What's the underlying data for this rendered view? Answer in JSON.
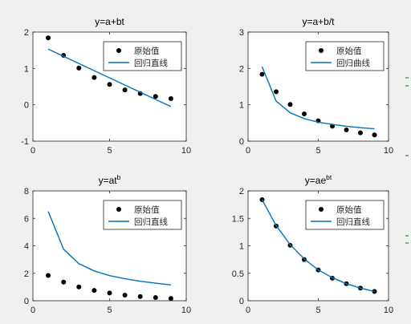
{
  "window": {
    "edge_marks_color": "#3aa24a"
  },
  "chart_data": [
    {
      "type": "scatter",
      "title_main": "y=a+bt",
      "title_sup": "",
      "xlim": [
        0,
        10
      ],
      "ylim": [
        -1,
        2
      ],
      "xticks": [
        0,
        5,
        10
      ],
      "yticks": [
        -1,
        0,
        1,
        2
      ],
      "legend_placement": "top-right",
      "series": [
        {
          "name": "原始值",
          "kind": "points",
          "color": "#000000",
          "x": [
            1,
            2,
            3,
            4,
            5,
            6,
            7,
            8,
            9
          ],
          "y": [
            1.84,
            1.36,
            1.01,
            0.75,
            0.56,
            0.41,
            0.31,
            0.23,
            0.17
          ]
        },
        {
          "name": "回归直线",
          "kind": "line",
          "color": "#0072bd",
          "x": [
            1,
            9
          ],
          "y": [
            1.53,
            -0.05
          ]
        }
      ]
    },
    {
      "type": "scatter",
      "title_main": "y=a+b/t",
      "title_sup": "",
      "xlim": [
        0,
        10
      ],
      "ylim": [
        0,
        3
      ],
      "xticks": [
        0,
        5,
        10
      ],
      "yticks": [
        0,
        1,
        2,
        3
      ],
      "legend_placement": "top-right",
      "series": [
        {
          "name": "原始值",
          "kind": "points",
          "color": "#000000",
          "x": [
            1,
            2,
            3,
            4,
            5,
            6,
            7,
            8,
            9
          ],
          "y": [
            1.84,
            1.36,
            1.01,
            0.75,
            0.56,
            0.41,
            0.31,
            0.23,
            0.17
          ]
        },
        {
          "name": "回归曲线",
          "kind": "line",
          "color": "#0072bd",
          "x": [
            1,
            2,
            3,
            4,
            5,
            6,
            7,
            8,
            9
          ],
          "y": [
            2.05,
            1.1,
            0.78,
            0.62,
            0.52,
            0.46,
            0.41,
            0.37,
            0.34
          ]
        }
      ]
    },
    {
      "type": "scatter",
      "title_main": "y=at",
      "title_sup": "b",
      "xlim": [
        0,
        10
      ],
      "ylim": [
        0,
        8
      ],
      "xticks": [
        0,
        5,
        10
      ],
      "yticks": [
        0,
        2,
        4,
        6,
        8
      ],
      "legend_placement": "top-right",
      "series": [
        {
          "name": "原始值",
          "kind": "points",
          "color": "#000000",
          "x": [
            1,
            2,
            3,
            4,
            5,
            6,
            7,
            8,
            9
          ],
          "y": [
            1.84,
            1.36,
            1.01,
            0.75,
            0.56,
            0.41,
            0.31,
            0.23,
            0.17
          ]
        },
        {
          "name": "回归直线",
          "kind": "line",
          "color": "#0072bd",
          "x": [
            1,
            2,
            3,
            4,
            5,
            6,
            7,
            8,
            9
          ],
          "y": [
            6.5,
            3.75,
            2.7,
            2.17,
            1.83,
            1.6,
            1.42,
            1.28,
            1.15
          ]
        }
      ]
    },
    {
      "type": "scatter",
      "title_main": "y=ae",
      "title_sup": "bt",
      "xlim": [
        0,
        10
      ],
      "ylim": [
        0,
        2
      ],
      "xticks": [
        0,
        5,
        10
      ],
      "yticks": [
        0,
        0.5,
        1,
        1.5,
        2
      ],
      "legend_placement": "top-right",
      "series": [
        {
          "name": "原始值",
          "kind": "points",
          "color": "#000000",
          "x": [
            1,
            2,
            3,
            4,
            5,
            6,
            7,
            8,
            9
          ],
          "y": [
            1.84,
            1.36,
            1.01,
            0.75,
            0.56,
            0.41,
            0.31,
            0.23,
            0.17
          ]
        },
        {
          "name": "回归直线",
          "kind": "line",
          "color": "#0072bd",
          "x": [
            1,
            2,
            3,
            4,
            5,
            6,
            7,
            8,
            9
          ],
          "y": [
            1.84,
            1.37,
            1.02,
            0.76,
            0.56,
            0.42,
            0.31,
            0.23,
            0.17
          ]
        }
      ]
    }
  ]
}
